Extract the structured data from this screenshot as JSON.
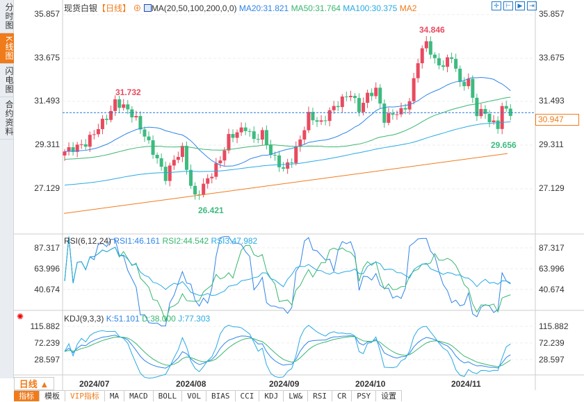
{
  "sidebar": {
    "tabs": [
      "分时图",
      "K线图",
      "闪电图",
      "合约资料"
    ],
    "active": 1
  },
  "header": {
    "title": "现货白银",
    "period": "【日线】",
    "ma_label": "MA(20,50,100,200,0,0)",
    "ma20": "MA20:31.821",
    "ma50": "MA50:31.764",
    "ma100": "MA100:30.375",
    "ma200": "MA2"
  },
  "tool_icons": [
    "crosshair-icon",
    "zoom-range-icon",
    "zoom-in-icon",
    "move-right-icon"
  ],
  "colors": {
    "up": "#e84a5f",
    "down": "#3dbb7f",
    "ma20": "#2f84e8",
    "ma50": "#38b66f",
    "ma100": "#27a9e3",
    "ma200": "#f07b1a",
    "accent": "#f07b1a"
  },
  "price_axis": {
    "ticks": [
      "35.857",
      "33.675",
      "31.493",
      "29.311",
      "27.129"
    ],
    "current": "30.947"
  },
  "annotations": {
    "high1": "31.732",
    "low1": "26.421",
    "high2": "34.846",
    "low2": "29.656"
  },
  "rsi": {
    "label": "RSI(6,12,24)",
    "rsi1": "RSI1:46.161",
    "rsi2": "RSI2:44.542",
    "rsi3": "RSI3:47.982",
    "ticks": [
      "87.317",
      "63.996",
      "40.674"
    ]
  },
  "kdj": {
    "label": "KDJ(9,3,3)",
    "k": "K:51.101",
    "d": "D:38.000",
    "j": "J:77.303",
    "ticks": [
      "115.882",
      "72.239",
      "28.597"
    ]
  },
  "period_selector": "日线 ▲",
  "dates": [
    "2024/07",
    "2024/08",
    "2024/09",
    "2024/10",
    "2024/11"
  ],
  "indicator_tabs": [
    "指标",
    "模板",
    "VIP指标",
    "MA",
    "MACD",
    "BOLL",
    "VOL",
    "BIAS",
    "CCI",
    "KDJ",
    "LW&",
    "RSI",
    "CR",
    "PSY",
    "设置"
  ],
  "chart_data": {
    "type": "candlestick",
    "title": "现货白银 日线",
    "ylim": [
      26.0,
      36.2
    ],
    "close_keypoints": [
      [
        0,
        29.0
      ],
      [
        5,
        29.4
      ],
      [
        11,
        31.0
      ],
      [
        12,
        31.5
      ],
      [
        15,
        31.1
      ],
      [
        17,
        30.6
      ],
      [
        19,
        29.8
      ],
      [
        22,
        28.6
      ],
      [
        24,
        27.7
      ],
      [
        26,
        28.6
      ],
      [
        28,
        29.1
      ],
      [
        30,
        27.3
      ],
      [
        31,
        26.7
      ],
      [
        33,
        27.3
      ],
      [
        35,
        27.9
      ],
      [
        37,
        28.6
      ],
      [
        39,
        29.7
      ],
      [
        43,
        30.2
      ],
      [
        45,
        29.6
      ],
      [
        47,
        29.9
      ],
      [
        49,
        28.9
      ],
      [
        52,
        28.1
      ],
      [
        54,
        28.6
      ],
      [
        56,
        29.6
      ],
      [
        58,
        30.8
      ],
      [
        61,
        30.4
      ],
      [
        63,
        31.0
      ],
      [
        66,
        31.6
      ],
      [
        68,
        31.9
      ],
      [
        70,
        31.1
      ],
      [
        72,
        31.8
      ],
      [
        74,
        32.1
      ],
      [
        76,
        30.6
      ],
      [
        78,
        30.9
      ],
      [
        80,
        31.0
      ],
      [
        82,
        31.5
      ],
      [
        84,
        33.6
      ],
      [
        86,
        34.5
      ],
      [
        88,
        33.5
      ],
      [
        90,
        33.3
      ],
      [
        92,
        33.8
      ],
      [
        94,
        32.4
      ],
      [
        96,
        32.5
      ],
      [
        98,
        30.9
      ],
      [
        100,
        31.0
      ],
      [
        101,
        30.5
      ],
      [
        103,
        30.3
      ],
      [
        104,
        31.2
      ],
      [
        106,
        30.95
      ]
    ]
  }
}
